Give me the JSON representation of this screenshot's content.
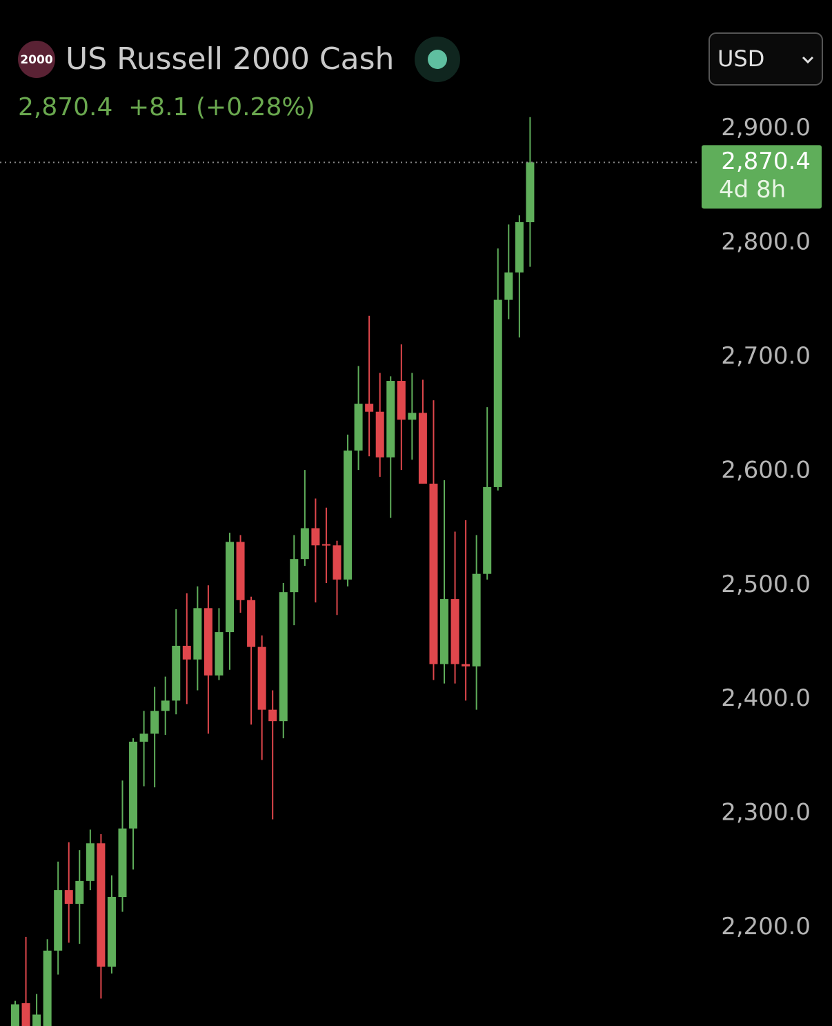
{
  "header": {
    "icon": "2000",
    "title": "US Russell 2000 Cash",
    "price": "2,870.4",
    "change": "+8.1",
    "change_pct": "(+0.28%)",
    "currency": "USD"
  },
  "chart_data": {
    "type": "candlestick",
    "up_color": "#5fae5a",
    "down_color": "#e0474c",
    "open": [
      2109,
      2134,
      2105,
      2109,
      2180,
      2233,
      2221,
      2241,
      2274,
      2166,
      2227,
      2287,
      2363,
      2370,
      2390,
      2399,
      2447,
      2435,
      2480,
      2421,
      2459,
      2538,
      2487,
      2446,
      2391,
      2381,
      2494,
      2523,
      2550,
      2536,
      2535,
      2505,
      2618,
      2659,
      2652,
      2612,
      2679,
      2645,
      2651,
      2589,
      2431,
      2488,
      2431,
      2429,
      2510,
      2586,
      2750,
      2774,
      2818
    ],
    "high": [
      2136,
      2192,
      2142,
      2190,
      2258,
      2275,
      2268,
      2286,
      2282,
      2246,
      2329,
      2366,
      2390,
      2411,
      2420,
      2479,
      2493,
      2499,
      2500,
      2480,
      2546,
      2544,
      2490,
      2456,
      2408,
      2502,
      2544,
      2601,
      2576,
      2568,
      2539,
      2632,
      2692,
      2736,
      2686,
      2683,
      2711,
      2686,
      2680,
      2662,
      2592,
      2547,
      2557,
      2544,
      2656,
      2795,
      2816,
      2824,
      2910
    ],
    "low": [
      2100,
      2100,
      2100,
      2100,
      2159,
      2187,
      2186,
      2233,
      2138,
      2160,
      2214,
      2251,
      2324,
      2323,
      2369,
      2387,
      2396,
      2408,
      2370,
      2417,
      2426,
      2476,
      2378,
      2347,
      2295,
      2366,
      2465,
      2517,
      2485,
      2502,
      2474,
      2499,
      2601,
      2613,
      2595,
      2559,
      2601,
      2610,
      2589,
      2417,
      2414,
      2414,
      2399,
      2391,
      2505,
      2583,
      2733,
      2717,
      2779
    ],
    "close": [
      2133,
      2108,
      2124,
      2180,
      2233,
      2221,
      2241,
      2274,
      2166,
      2227,
      2287,
      2363,
      2370,
      2390,
      2399,
      2447,
      2435,
      2480,
      2421,
      2459,
      2538,
      2487,
      2446,
      2391,
      2381,
      2494,
      2523,
      2550,
      2535,
      2535,
      2505,
      2618,
      2659,
      2652,
      2612,
      2679,
      2645,
      2651,
      2589,
      2431,
      2488,
      2431,
      2429,
      2510,
      2586,
      2750,
      2774,
      2818,
      2870.4
    ],
    "ylim": [
      2114,
      2928
    ],
    "yticks": [
      {
        "value": 2200,
        "label": "2,200.0"
      },
      {
        "value": 2300,
        "label": "2,300.0"
      },
      {
        "value": 2400,
        "label": "2,400.0"
      },
      {
        "value": 2500,
        "label": "2,500.0"
      },
      {
        "value": 2600,
        "label": "2,600.0"
      },
      {
        "value": 2700,
        "label": "2,700.0"
      },
      {
        "value": 2800,
        "label": "2,800.0"
      },
      {
        "value": 2900,
        "label": "2,900.0"
      }
    ],
    "last_price": {
      "value": 2870.4,
      "label": "2,870.4"
    },
    "countdown": "4d 8h"
  }
}
